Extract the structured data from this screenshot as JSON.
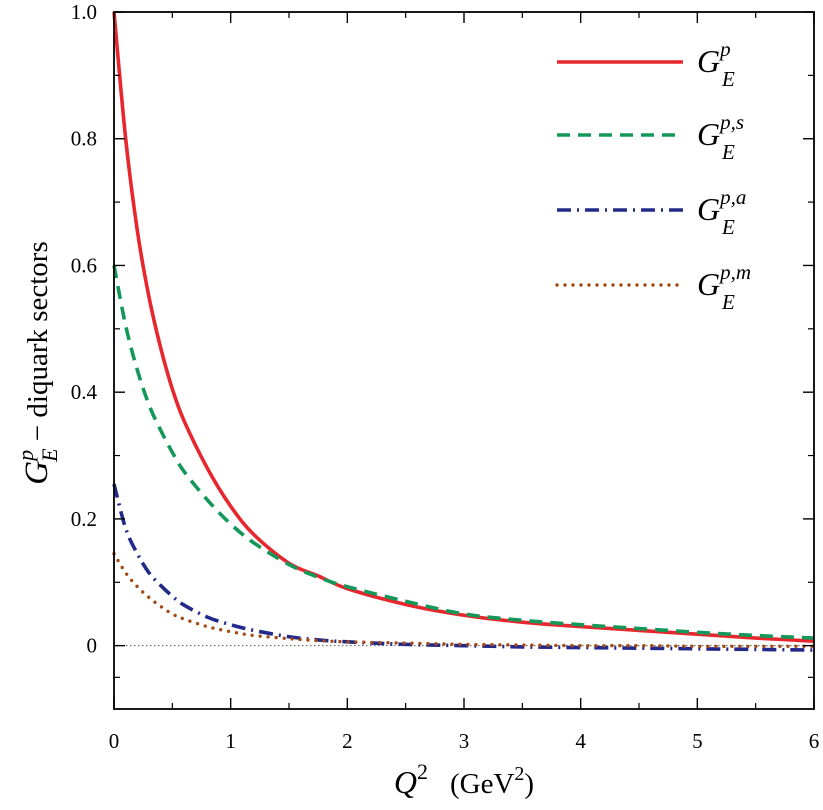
{
  "chart_data": {
    "type": "line",
    "xlabel": {
      "main": "Q",
      "sup": "2",
      "unit_open": "(GeV",
      "unit_sup": "2",
      "unit_close": ")"
    },
    "ylabel": {
      "main": "G",
      "sup": "p",
      "sub": "E",
      "rest": " − diquark sectors"
    },
    "xlim": [
      0,
      6
    ],
    "ylim": [
      -0.1,
      1.0
    ],
    "xticks": [
      0,
      1,
      2,
      3,
      4,
      5,
      6
    ],
    "xtick_labels": [
      "0",
      "1",
      "2",
      "3",
      "4",
      "5",
      "6"
    ],
    "yticks": [
      0,
      0.2,
      0.4,
      0.6,
      0.8,
      1.0
    ],
    "ytick_labels": [
      "0",
      "0.2",
      "0.4",
      "0.6",
      "0.8",
      "1.0"
    ],
    "zero_line": true,
    "grid": false,
    "legend_position": "top-right",
    "x": [
      0,
      0.1,
      0.2,
      0.3,
      0.4,
      0.5,
      0.6,
      0.8,
      1.0,
      1.2,
      1.5,
      1.75,
      2.0,
      2.5,
      3.0,
      3.5,
      4.0,
      4.5,
      5.0,
      5.5,
      6.0
    ],
    "series": [
      {
        "name": {
          "main": "G",
          "sup": "p",
          "sub": "E"
        },
        "color": "#e8262d",
        "style": "solid",
        "values": [
          1.0,
          0.8,
          0.655,
          0.55,
          0.47,
          0.405,
          0.355,
          0.28,
          0.22,
          0.175,
          0.13,
          0.11,
          0.09,
          0.065,
          0.048,
          0.037,
          0.03,
          0.024,
          0.018,
          0.012,
          0.007
        ]
      },
      {
        "name": {
          "main": "G",
          "sup": "p,s",
          "sub": "E"
        },
        "color": "#13985a",
        "style": "dashed",
        "values": [
          0.6,
          0.505,
          0.435,
          0.38,
          0.34,
          0.305,
          0.275,
          0.23,
          0.192,
          0.162,
          0.128,
          0.108,
          0.093,
          0.07,
          0.05,
          0.04,
          0.033,
          0.027,
          0.021,
          0.016,
          0.012
        ]
      },
      {
        "name": {
          "main": "G",
          "sup": "p,a",
          "sub": "E"
        },
        "color": "#23298b",
        "style": "dashdot",
        "values": [
          0.255,
          0.185,
          0.145,
          0.115,
          0.095,
          0.078,
          0.064,
          0.045,
          0.033,
          0.024,
          0.014,
          0.009,
          0.006,
          0.002,
          0.0,
          -0.002,
          -0.003,
          -0.004,
          -0.005,
          -0.006,
          -0.007
        ]
      },
      {
        "name": {
          "main": "G",
          "sup": "p,m",
          "sub": "E"
        },
        "color": "#a44a14",
        "style": "dotted",
        "values": [
          0.145,
          0.115,
          0.093,
          0.076,
          0.062,
          0.05,
          0.042,
          0.03,
          0.022,
          0.016,
          0.011,
          0.008,
          0.006,
          0.004,
          0.002,
          0.001,
          0.0,
          0.0,
          -0.001,
          -0.001,
          -0.001
        ]
      }
    ]
  }
}
